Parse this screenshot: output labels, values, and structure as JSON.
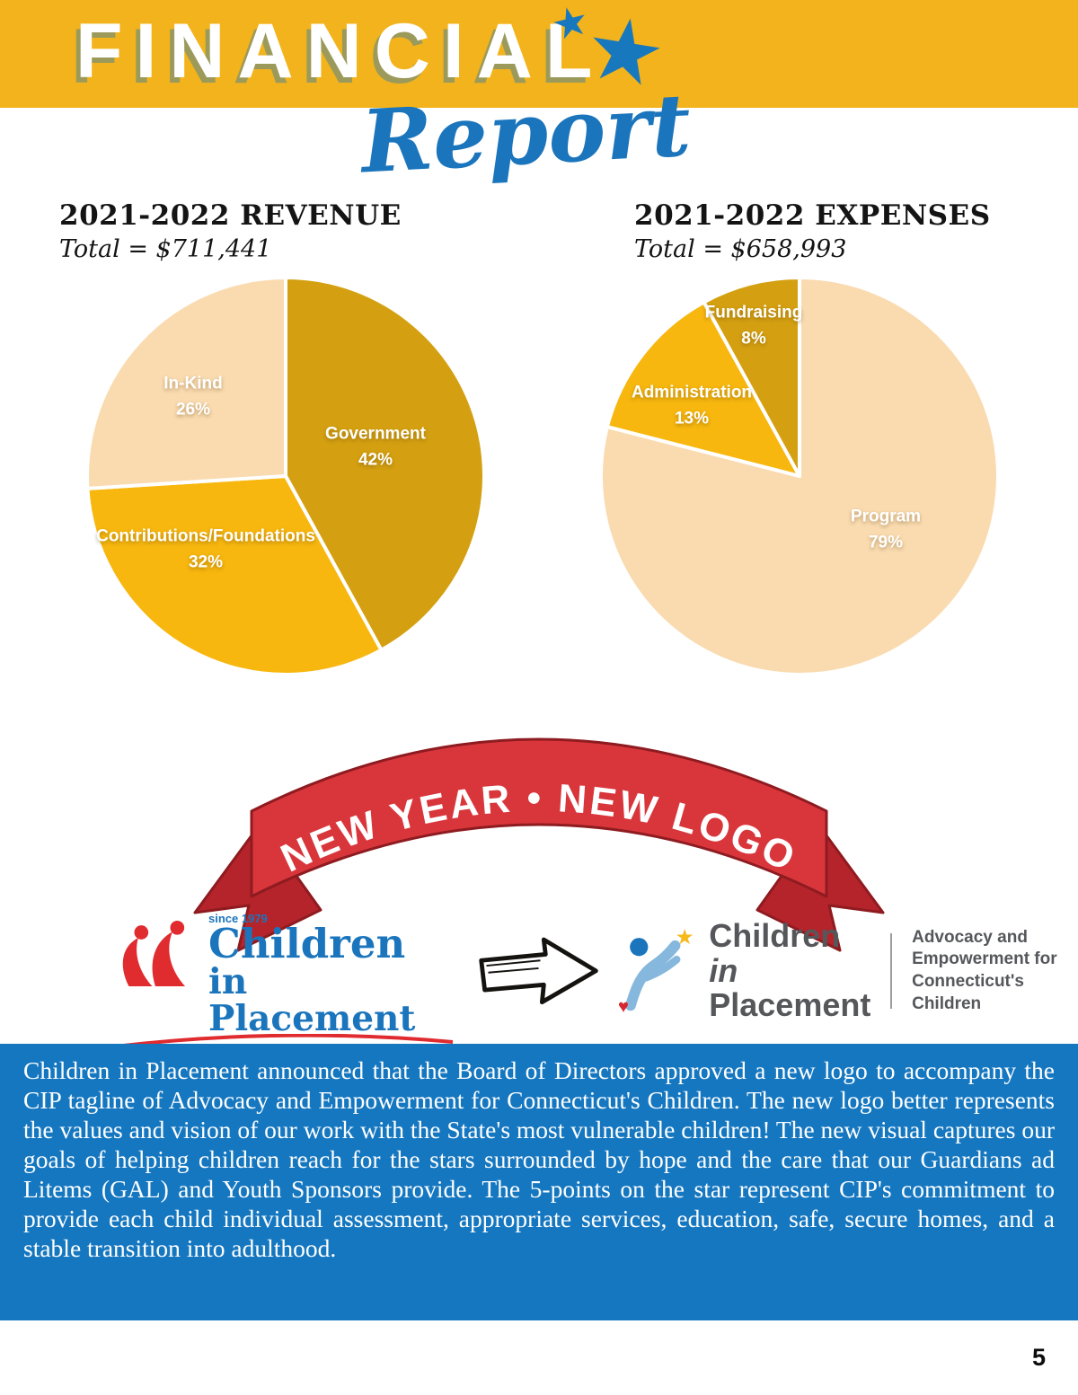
{
  "header": {
    "title": "FINANCIAL",
    "subtitle": "Report"
  },
  "icons": {
    "star": "★",
    "heart": "♥"
  },
  "revenue": {
    "heading": "2021-2022 REVENUE",
    "total_label": "Total = $711,441"
  },
  "expenses": {
    "heading": "2021-2022 EXPENSES",
    "total_label": "Total = $658,993"
  },
  "chart_data": [
    {
      "type": "pie",
      "title": "2021-2022 REVENUE",
      "subtitle": "Total = $711,441",
      "total_dollars": "$711,441",
      "start_angle_deg": 0,
      "direction": "clockwise",
      "legend_position": "inside-slices",
      "slices": [
        {
          "label": "Government",
          "pct": "42%",
          "value": 42,
          "color": "#d4a011"
        },
        {
          "label": "Contributions/Foundations",
          "pct": "32%",
          "value": 32,
          "color": "#f7b70f"
        },
        {
          "label": "In-Kind",
          "pct": "26%",
          "value": 26,
          "color": "#fadbb0"
        }
      ]
    },
    {
      "type": "pie",
      "title": "2021-2022 EXPENSES",
      "subtitle": "Total = $658,993",
      "total_dollars": "$658,993",
      "start_angle_deg": 0,
      "direction": "clockwise",
      "legend_position": "inside-slices",
      "slices": [
        {
          "label": "Program",
          "pct": "79%",
          "value": 79,
          "color": "#fadbb0"
        },
        {
          "label": "Administration",
          "pct": "13%",
          "value": 13,
          "color": "#f7b70f"
        },
        {
          "label": "Fundraising",
          "pct": "8%",
          "value": 8,
          "color": "#d4a011"
        }
      ]
    }
  ],
  "banner": {
    "text": "NEW YEAR • NEW LOGO"
  },
  "old_logo": {
    "since": "since 1979",
    "name_line1": "Children",
    "name_line2": "in Placement",
    "tagline": "Advocacy and Empowerment for Connecticut's Children"
  },
  "new_logo": {
    "name_part1": "Children",
    "name_part2": "in",
    "name_line2": "Placement",
    "tagline_lines": [
      "Advocacy and",
      "Empowerment for",
      "Connecticut's Children"
    ]
  },
  "announcement": {
    "text": "Children in Placement announced that the Board of Directors approved a new logo to accompany the CIP tagline of Advocacy and Empowerment for Connecticut's Children. The new logo better represents the values and vision of our work with the State's most vulnerable children! The new visual captures our goals of helping children reach for the stars surrounded by hope and the care that our Guardians ad Litems (GAL) and Youth Sponsors provide. The 5-points on the star represent CIP's commitment to provide each child individual assessment, appropriate services, education, safe, secure homes, and a stable transition into adulthood."
  },
  "footer": {
    "page_number": "5"
  },
  "colors": {
    "header_gold": "#f2b31c",
    "brand_blue": "#1b75bc",
    "ribbon_red": "#d9363c",
    "announcement_blue": "#1577c0",
    "old_logo_red": "#e02b2f",
    "pie_dark_gold": "#d4a011",
    "pie_yellow": "#f7b70f",
    "pie_cream": "#fadbb0"
  }
}
